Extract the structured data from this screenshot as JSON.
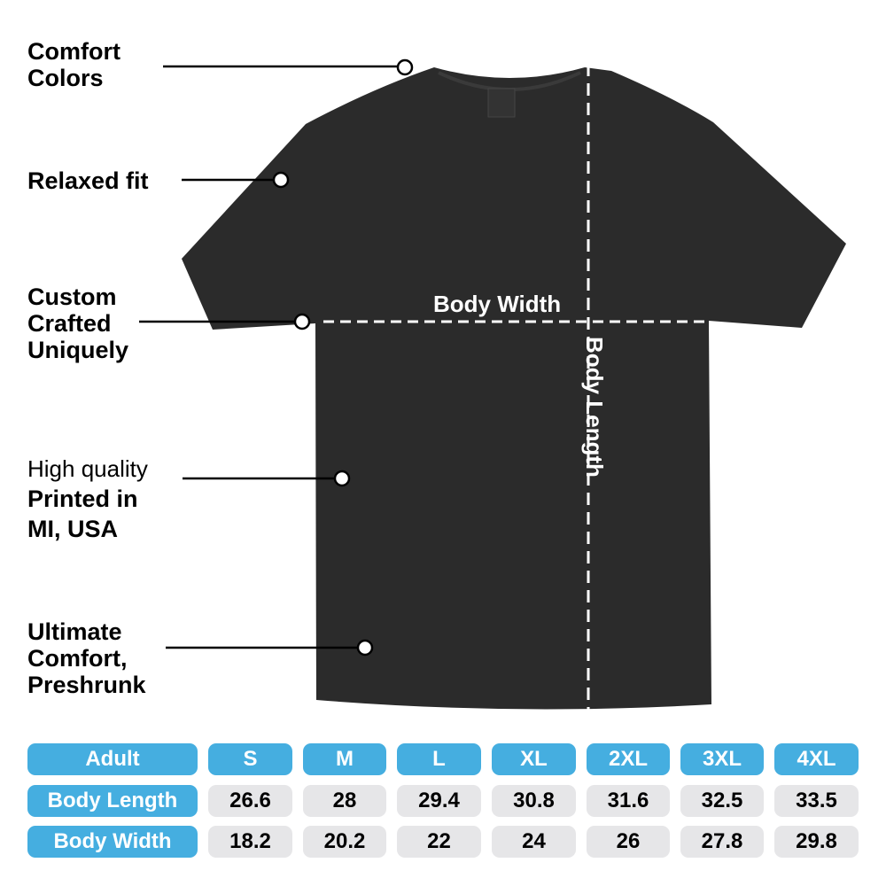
{
  "colors": {
    "shirt": "#2b2b2b",
    "header_blue": "#45aee0",
    "cell_gray": "#e6e6e8"
  },
  "callouts": [
    {
      "lines": [
        "Comfort",
        "Colors"
      ]
    },
    {
      "lines": [
        "Relaxed fit"
      ]
    },
    {
      "lines": [
        "Custom",
        "Crafted",
        "Uniquely"
      ]
    },
    {
      "light": "High quality",
      "lines": [
        "Printed in",
        "MI, USA"
      ]
    },
    {
      "lines": [
        "Ultimate",
        "Comfort,",
        "Preshrunk"
      ]
    }
  ],
  "measure": {
    "width_label": "Body Width",
    "length_label": "Body Length"
  },
  "size_table": {
    "header": [
      "Adult",
      "S",
      "M",
      "L",
      "XL",
      "2XL",
      "3XL",
      "4XL"
    ],
    "rows": [
      {
        "label": "Body Length",
        "values": [
          "26.6",
          "28",
          "29.4",
          "30.8",
          "31.6",
          "32.5",
          "33.5"
        ]
      },
      {
        "label": "Body Width",
        "values": [
          "18.2",
          "20.2",
          "22",
          "24",
          "26",
          "27.8",
          "29.8"
        ]
      }
    ]
  }
}
